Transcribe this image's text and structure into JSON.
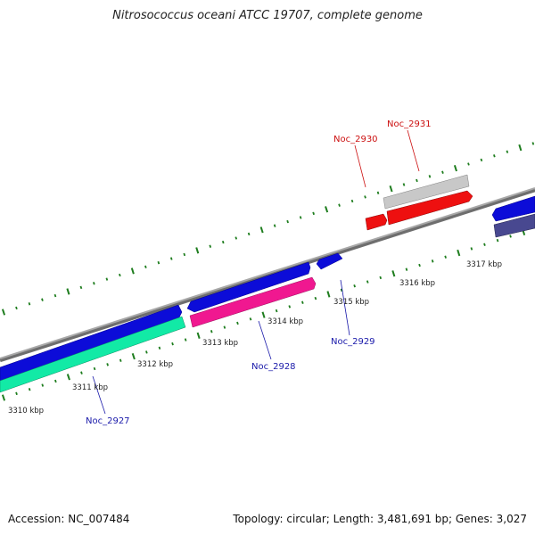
{
  "title": "Nitrosococcus oceani ATCC 19707, complete genome",
  "accession": "Accession: NC_007484",
  "summary": "Topology: circular; Length: 3,481,691 bp; Genes: 3,027",
  "colors": {
    "backbone": "#8f8f8f",
    "tick": "#1e7d1e",
    "forward_cds": "#1010e0",
    "reverse_cds": "#10e0a0",
    "pink": "#f01890",
    "red": "#ee1010",
    "grey": "#c8c8c8",
    "navy": "#484890",
    "label_blue": "#1a1aaa",
    "label_red": "#cc1010"
  },
  "scale": {
    "kbp_labels": [
      "3310 kbp",
      "3311 kbp",
      "3312 kbp",
      "3313 kbp",
      "3314 kbp",
      "3315 kbp",
      "3316 kbp",
      "3317 kbp"
    ]
  },
  "genes": [
    {
      "name": "Noc_2927",
      "color": "label_blue"
    },
    {
      "name": "Noc_2928",
      "color": "label_blue"
    },
    {
      "name": "Noc_2929",
      "color": "label_blue"
    },
    {
      "name": "Noc_2930",
      "color": "label_red"
    },
    {
      "name": "Noc_2931",
      "color": "label_red"
    }
  ]
}
